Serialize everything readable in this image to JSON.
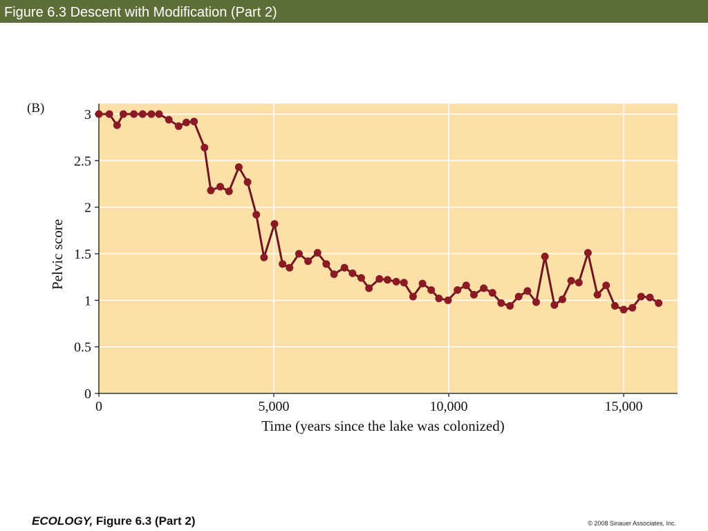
{
  "header": {
    "title": "Figure 6.3  Descent with Modification (Part 2)"
  },
  "footer": {
    "book": "ECOLOGY,",
    "figure": " Figure 6.3 (Part 2)",
    "copyright": "© 2008 Sinauer Associates, Inc."
  },
  "colors": {
    "title_bar": "#5e6e38",
    "plot_bg": "#fde0a8",
    "line": "#6e1520",
    "marker": "#8a1a24",
    "grid": "#ffffff"
  },
  "chart_data": {
    "type": "line",
    "panel_label": "(B)",
    "xlabel": "Time (years since the lake was colonized)",
    "ylabel": "Pelvic score",
    "xlim": [
      0,
      16500
    ],
    "ylim": [
      0,
      3.1
    ],
    "xticks": [
      0,
      5000,
      10000,
      15000
    ],
    "xtick_labels": [
      "0",
      "5,000",
      "10,000",
      "15,000"
    ],
    "yticks": [
      0,
      0.5,
      1,
      1.5,
      2,
      2.5,
      3
    ],
    "ytick_labels": [
      "0",
      "0.5",
      "1",
      "1.5",
      "2",
      "2.5",
      "3"
    ],
    "grid": true,
    "series": [
      {
        "x": [
          0,
          300,
          520,
          700,
          1000,
          1250,
          1500,
          1720,
          2000,
          2280,
          2500,
          2720,
          3020,
          3200,
          3470,
          3720,
          4000,
          4250,
          4500,
          4720,
          5020,
          5250,
          5450,
          5720,
          5980,
          6250,
          6500,
          6720,
          7020,
          7250,
          7500,
          7720,
          8020,
          8250,
          8500,
          8720,
          8980,
          9250,
          9500,
          9720,
          9980,
          10250,
          10500,
          10720,
          11000,
          11250,
          11500,
          11750,
          12000,
          12250,
          12500,
          12750,
          13020,
          13250,
          13500,
          13720,
          13980,
          14250,
          14500,
          14750,
          15000,
          15250,
          15500,
          15750,
          16000
        ],
        "y": [
          3.0,
          3.0,
          2.88,
          3.0,
          3.0,
          3.0,
          3.0,
          3.0,
          2.94,
          2.87,
          2.91,
          2.92,
          2.64,
          2.18,
          2.22,
          2.17,
          2.43,
          2.27,
          1.92,
          1.46,
          1.82,
          1.39,
          1.35,
          1.5,
          1.42,
          1.51,
          1.39,
          1.28,
          1.35,
          1.29,
          1.24,
          1.13,
          1.23,
          1.22,
          1.2,
          1.19,
          1.04,
          1.18,
          1.11,
          1.02,
          1.0,
          1.11,
          1.16,
          1.06,
          1.13,
          1.08,
          0.97,
          0.94,
          1.04,
          1.1,
          0.98,
          1.47,
          0.95,
          1.01,
          1.21,
          1.19,
          1.51,
          1.06,
          1.16,
          0.94,
          0.9,
          0.92,
          1.04,
          1.03,
          0.97
        ]
      }
    ]
  }
}
